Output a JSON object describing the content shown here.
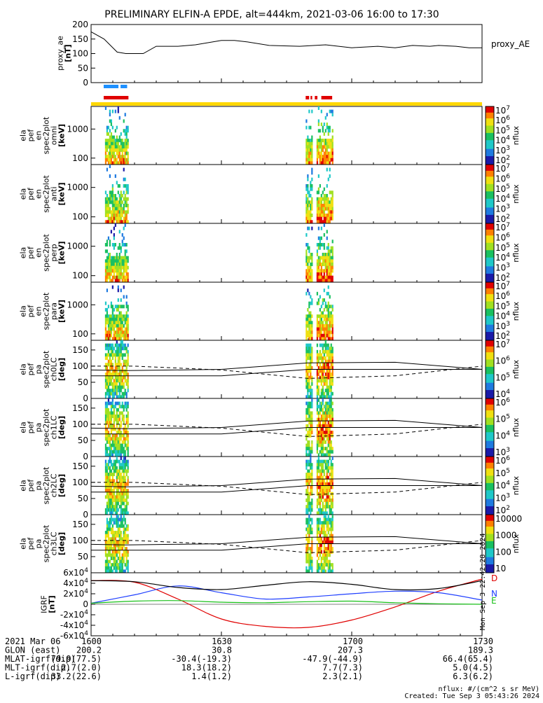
{
  "title": "PRELIMINARY ELFIN-A EPDE, alt=444km, 2021-03-06 16:00 to 17:30",
  "colors": {
    "ae_line": "#000000",
    "bar_blue": "#1e90ff",
    "bar_red": "#e00000",
    "yellow": "#ffd700",
    "igrf_d": "#e00000",
    "igrf_n": "#1f3fff",
    "igrf_e": "#19c019",
    "igrf_total": "#000000"
  },
  "chart_data": [
    {
      "id": "proxy_ae",
      "type": "line",
      "title": "",
      "ylabel": "proxy_ae [nT]",
      "legend": "proxy_AE",
      "ylim": [
        0,
        200
      ],
      "yticks": [
        0,
        50,
        100,
        150,
        200
      ],
      "x": [
        0,
        3,
        6,
        8,
        12,
        15,
        20,
        24,
        30,
        33,
        36,
        41,
        48,
        54,
        60,
        66,
        70,
        74,
        78,
        80,
        84,
        87,
        90
      ],
      "values": [
        175,
        150,
        105,
        100,
        100,
        125,
        125,
        130,
        145,
        145,
        140,
        128,
        125,
        130,
        120,
        125,
        120,
        128,
        125,
        128,
        125,
        120,
        120
      ]
    },
    {
      "id": "status_bars",
      "type": "bar",
      "segments": [
        {
          "color": "bar_blue",
          "x": [
            2.9,
            8.3
          ]
        },
        {
          "color": "bar_red",
          "x": [
            2.9,
            8.6
          ]
        },
        {
          "color": "bar_red",
          "x": [
            49.4,
            50.9
          ]
        },
        {
          "color": "bar_red",
          "x": [
            51.5,
            52.1
          ]
        },
        {
          "color": "bar_red",
          "x": [
            53.0,
            55.5
          ]
        }
      ]
    },
    {
      "id": "spec_omni",
      "type": "heatmap",
      "ylabel": "ela pef en spec2plot omni [keV]",
      "yscale": "log",
      "ylim": [
        60,
        6000
      ],
      "yticks": [
        100,
        1000
      ],
      "cbar_label": "nflux",
      "cbar_range": [
        100,
        10000000
      ],
      "cbar_ticks": [
        "10^7",
        "10^6",
        "10^5",
        "10^4",
        "10^3",
        "10^2"
      ]
    },
    {
      "id": "spec_anti",
      "type": "heatmap",
      "ylabel": "ela pef en spec2plot anti [keV]",
      "yscale": "log",
      "ylim": [
        60,
        6000
      ],
      "yticks": [
        100,
        1000
      ],
      "cbar_label": "nflux",
      "cbar_range": [
        100,
        10000000
      ],
      "cbar_ticks": [
        "10^7",
        "10^6",
        "10^5",
        "10^4",
        "10^3",
        "10^2"
      ]
    },
    {
      "id": "spec_perp",
      "type": "heatmap",
      "ylabel": "ela pef en spec2plot perp [keV]",
      "yscale": "log",
      "ylim": [
        60,
        6000
      ],
      "yticks": [
        100,
        1000
      ],
      "cbar_label": "nflux",
      "cbar_range": [
        100,
        10000000
      ],
      "cbar_ticks": [
        "10^7",
        "10^6",
        "10^5",
        "10^4",
        "10^3",
        "10^2"
      ]
    },
    {
      "id": "spec_para",
      "type": "heatmap",
      "ylabel": "ela pef en spec2plot para [keV]",
      "yscale": "log",
      "ylim": [
        60,
        6000
      ],
      "yticks": [
        100,
        1000
      ],
      "cbar_label": "nflux",
      "cbar_range": [
        100,
        10000000
      ],
      "cbar_ticks": [
        "10^7",
        "10^6",
        "10^5",
        "10^4",
        "10^3",
        "10^2"
      ]
    },
    {
      "id": "pa_ch0",
      "type": "heatmap",
      "ylabel": "ela pef pa spec2plot ch0LC [deg]",
      "ylim": [
        0,
        180
      ],
      "yticks": [
        0,
        50,
        100,
        150
      ],
      "cbar_label": "nflux",
      "cbar_ticks": [
        "10^7",
        "10^6",
        "10^5",
        "10^4"
      ]
    },
    {
      "id": "pa_ch1",
      "type": "heatmap",
      "ylabel": "ela pef pa spec2plot ch1LC [deg]",
      "ylim": [
        0,
        180
      ],
      "yticks": [
        0,
        50,
        100,
        150
      ],
      "cbar_label": "nflux",
      "cbar_ticks": [
        "10^6",
        "10^5",
        "10^4",
        "10^3"
      ]
    },
    {
      "id": "pa_ch2",
      "type": "heatmap",
      "ylabel": "ela pef pa spec2plot ch2LC [deg]",
      "ylim": [
        0,
        180
      ],
      "yticks": [
        0,
        50,
        100,
        150
      ],
      "cbar_label": "nflux",
      "cbar_ticks": [
        "10^6",
        "10^5",
        "10^4",
        "10^3",
        "10^2"
      ]
    },
    {
      "id": "pa_ch3",
      "type": "heatmap",
      "ylabel": "ela pef pa spec2plot ch3LC [deg]",
      "ylim": [
        0,
        180
      ],
      "yticks": [
        50,
        100,
        150
      ],
      "cbar_label": "nflux",
      "cbar_ticks": [
        "10000",
        "1000",
        "100",
        "10"
      ]
    },
    {
      "id": "igrf",
      "type": "line",
      "ylabel": "IGRF [nT]",
      "ylim": [
        -60000,
        60000
      ],
      "yticks": [
        "-6x10^4",
        "-4x10^4",
        "-2x10^4",
        "0",
        "2x10^4",
        "4x10^4",
        "6x10^4"
      ],
      "x": [
        0,
        10,
        20,
        30,
        40,
        50,
        60,
        70,
        80,
        90
      ],
      "series": [
        {
          "name": "D",
          "values": [
            45000,
            42000,
            10000,
            -28000,
            -42000,
            -44000,
            -30000,
            -5000,
            25000,
            48000
          ]
        },
        {
          "name": "N",
          "values": [
            2000,
            18000,
            35000,
            22000,
            10000,
            14000,
            20000,
            25000,
            22000,
            8000
          ]
        },
        {
          "name": "E",
          "values": [
            2000,
            6000,
            7000,
            4000,
            3000,
            5000,
            6000,
            3000,
            1000,
            0
          ]
        },
        {
          "name": "",
          "values": [
            45000,
            43000,
            32000,
            28000,
            36000,
            43000,
            38000,
            28000,
            30000,
            45000
          ]
        }
      ]
    }
  ],
  "footer": {
    "rows": [
      {
        "label": "2021 Mar 06",
        "v1600": "1600",
        "v1630": "1630",
        "v1700": "1700",
        "v1730": "1730"
      },
      {
        "label": "GLON (east)",
        "v1600": "200.2",
        "v1630": "30.8",
        "v1700": "207.3",
        "v1730": "189.3"
      },
      {
        "label": "MLAT-igrf(dip)",
        "v1600": "79.9(77.5)",
        "v1630": "-30.4(-19.3)",
        "v1700": "-47.9(-44.9)",
        "v1730": "66.4(65.4)"
      },
      {
        "label": "MLT-igrf(dip)",
        "v1600": "2.7(2.0)",
        "v1630": "18.3(18.2)",
        "v1700": "7.7(7.3)",
        "v1730": "5.0(4.5)"
      },
      {
        "label": "L-igrf(dip)",
        "v1600": "33.2(22.6)",
        "v1630": "1.4(1.2)",
        "v1700": "2.3(2.1)",
        "v1730": "6.3(6.2)"
      }
    ],
    "units_note": "nflux: #/(cm^2 s sr MeV)",
    "created": "Created: Tue Sep  3 05:43:26 2024",
    "side_stamp": "Mon Sep  3 22:42:28 2024"
  }
}
